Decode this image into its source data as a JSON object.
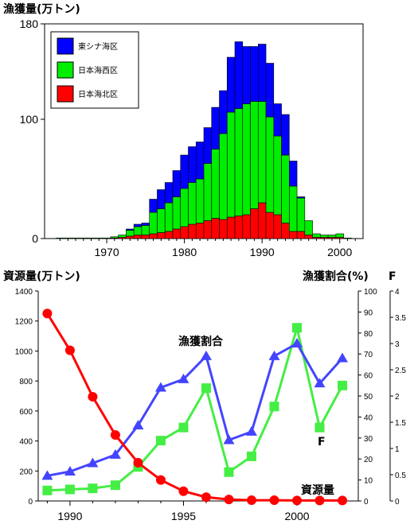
{
  "chart_data": [
    {
      "type": "bar",
      "stacked": true,
      "title": "漁獲量(万トン)",
      "x": [
        1964,
        1965,
        1966,
        1967,
        1968,
        1969,
        1970,
        1971,
        1972,
        1973,
        1974,
        1975,
        1976,
        1977,
        1978,
        1979,
        1980,
        1981,
        1982,
        1983,
        1984,
        1985,
        1986,
        1987,
        1988,
        1989,
        1990,
        1991,
        1992,
        1993,
        1994,
        1995,
        1996,
        1997,
        1998,
        1999,
        2000,
        2001
      ],
      "xticks": [
        1970,
        1980,
        1990,
        2000
      ],
      "ylim": [
        0,
        180
      ],
      "yticks": [
        0,
        100,
        180
      ],
      "legend_position": "top-left",
      "series": [
        {
          "name": "日本海北区",
          "color": "#ff0000",
          "values": [
            0,
            0,
            0,
            0,
            0,
            0,
            0,
            0.5,
            1,
            2,
            3,
            3,
            4,
            5,
            6,
            8,
            10,
            12,
            13,
            15,
            17,
            16,
            18,
            19,
            20,
            25,
            30,
            22,
            20,
            13,
            6,
            6,
            3,
            1,
            1,
            1,
            1,
            0
          ]
        },
        {
          "name": "日本海西区",
          "color": "#00ee00",
          "values": [
            0.5,
            0.5,
            0.5,
            0.5,
            0.5,
            0.5,
            0.5,
            1,
            2,
            5,
            7,
            8,
            18,
            20,
            24,
            27,
            32,
            35,
            37,
            48,
            58,
            72,
            88,
            90,
            93,
            90,
            85,
            80,
            66,
            57,
            38,
            28,
            12,
            3,
            2,
            2,
            3,
            0.5
          ]
        },
        {
          "name": "東シナ海区",
          "color": "#0000ff",
          "values": [
            0,
            0,
            0,
            0,
            0,
            0,
            0,
            0,
            0,
            1,
            2,
            2,
            11,
            16,
            17,
            22,
            28,
            30,
            31,
            30,
            35,
            36,
            46,
            56,
            48,
            46,
            48,
            45,
            27,
            34,
            21,
            1,
            0,
            0,
            0,
            0,
            0,
            0
          ]
        }
      ]
    },
    {
      "type": "line",
      "x": [
        1989,
        1990,
        1991,
        1992,
        1993,
        1994,
        1995,
        1996,
        1997,
        1998,
        1999,
        2000,
        2001,
        2002
      ],
      "xticks": [
        1990,
        1995,
        2000
      ],
      "left_axis": {
        "title": "資源量(万トン)",
        "ylim": [
          0,
          1400
        ],
        "ticks": [
          0,
          200,
          400,
          600,
          800,
          1000,
          1200,
          1400
        ]
      },
      "right_axis_1": {
        "title": "漁獲割合(%)",
        "ylim": [
          0,
          100
        ],
        "ticks": [
          0,
          10,
          20,
          30,
          40,
          50,
          60,
          70,
          80,
          90,
          100
        ]
      },
      "right_axis_2": {
        "title": "F",
        "ylim": [
          0,
          4
        ],
        "ticks": [
          "0",
          "0.5",
          "1",
          "1.5",
          "2",
          "2.5",
          "3",
          "3.5",
          "4"
        ]
      },
      "series": [
        {
          "name": "資源量",
          "axis": "left",
          "color": "#ff0000",
          "marker": "circle",
          "values": [
            1250,
            1005,
            695,
            440,
            255,
            140,
            65,
            25,
            10,
            5,
            5,
            3,
            3,
            3
          ]
        },
        {
          "name": "漁獲割合",
          "axis": "right_1",
          "color": "#4444ff",
          "marker": "triangle",
          "values": [
            12,
            14,
            18,
            22,
            36,
            54,
            58,
            69,
            29,
            33,
            69,
            75,
            56,
            68
          ]
        },
        {
          "name": "F",
          "axis": "right_2",
          "color": "#44ee44",
          "marker": "square",
          "values": [
            0.2,
            0.22,
            0.24,
            0.3,
            0.65,
            1.15,
            1.4,
            2.15,
            0.55,
            0.85,
            1.8,
            3.3,
            1.4,
            2.2
          ]
        }
      ]
    }
  ]
}
